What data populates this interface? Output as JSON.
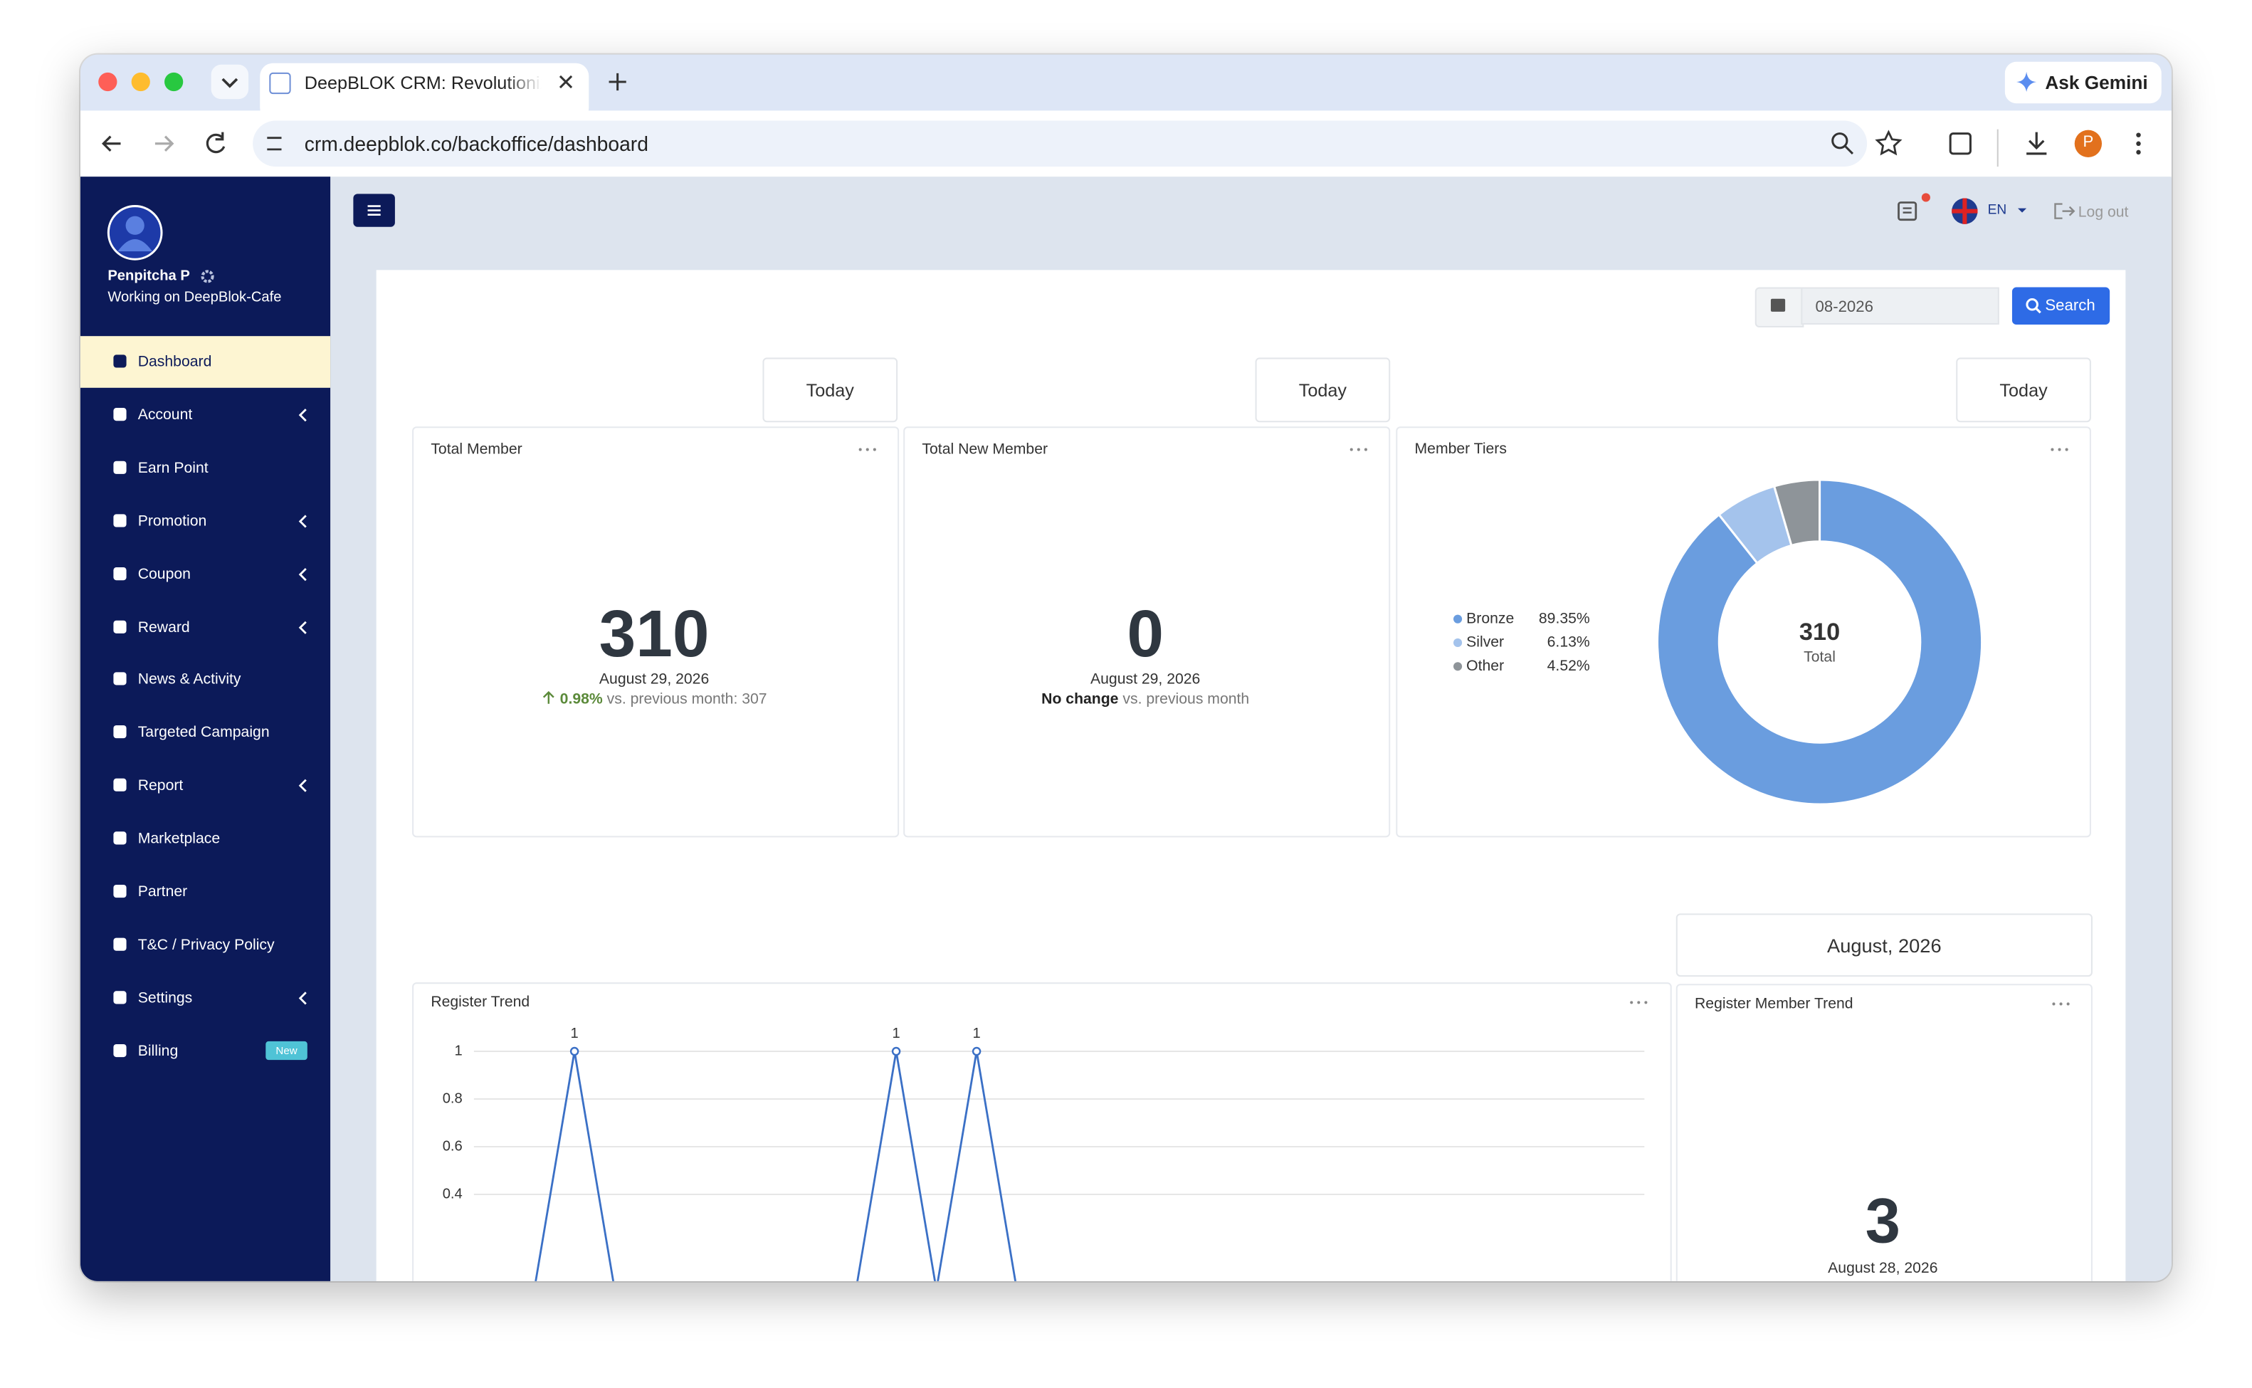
{
  "browser": {
    "tab_title": "DeepBLOK CRM: Revolutioniz",
    "gemini": "Ask Gemini",
    "url": "crm.deepblok.co/backoffice/dashboard",
    "profile_initial": "P"
  },
  "sidebar": {
    "user_name": "Penpitcha P",
    "workspace": "Working on DeepBlok-Cafe",
    "menu": [
      {
        "label": "Dashboard",
        "active": true
      },
      {
        "label": "Account",
        "submenu": true
      },
      {
        "label": "Earn Point"
      },
      {
        "label": "Promotion",
        "submenu": true
      },
      {
        "label": "Coupon",
        "submenu": true
      },
      {
        "label": "Reward",
        "submenu": true
      },
      {
        "label": "News & Activity"
      },
      {
        "label": "Targeted Campaign"
      },
      {
        "label": "Report",
        "submenu": true
      },
      {
        "label": "Marketplace"
      },
      {
        "label": "Partner"
      },
      {
        "label": "T&C / Privacy Policy"
      },
      {
        "label": "Settings",
        "submenu": true
      },
      {
        "label": "Billing",
        "badge": "New"
      }
    ]
  },
  "topbar": {
    "language": "EN",
    "logout": "Log out"
  },
  "filter": {
    "month": "08-2026",
    "button": "Search"
  },
  "cards": [
    {
      "period": "Today",
      "title": "Total Member",
      "number": "310",
      "date": "August 29, 2026",
      "change": "0.98%",
      "comparison": "vs. previous month: 307"
    },
    {
      "period": "Today",
      "title": "Total New Member",
      "number": "0",
      "date": "August 29, 2026",
      "change": "No change",
      "comparison": "vs. previous month"
    },
    {
      "period": "Today"
    },
    {
      "period": "August, 2026",
      "title": "Register Member Trend",
      "number": "3",
      "date": "August 28, 2026"
    }
  ],
  "chart_data": [
    {
      "type": "donut",
      "title": "Member Tiers",
      "categories": [
        "Bronze",
        "Silver",
        "Other"
      ],
      "values": [
        89.35,
        6.13,
        4.52
      ],
      "value_labels": [
        "89.35%",
        "6.13%",
        "4.52%"
      ],
      "colors": [
        "#6a9ddf",
        "#a4c3ec",
        "#8e9499"
      ],
      "center_value": "310",
      "center_label": "Total"
    },
    {
      "type": "line",
      "title": "Register Trend",
      "categories": [
        null,
        null,
        null,
        null,
        null,
        null,
        null,
        null,
        null,
        null,
        null,
        null,
        null,
        null,
        null,
        null,
        null,
        null,
        null,
        null,
        null,
        null,
        null,
        null,
        null,
        null,
        null,
        null,
        null
      ],
      "values": [
        0,
        0,
        1,
        0,
        0,
        0,
        0,
        0,
        0,
        0,
        1,
        0,
        1,
        0,
        0,
        0,
        0,
        0,
        0,
        0,
        0,
        0,
        0,
        0,
        0,
        0,
        0,
        0,
        0
      ],
      "color": "#3b70c6",
      "ylim": [
        0,
        1
      ],
      "yticks": [
        0.4,
        0.6,
        0.8,
        1
      ],
      "grid": true
    }
  ]
}
